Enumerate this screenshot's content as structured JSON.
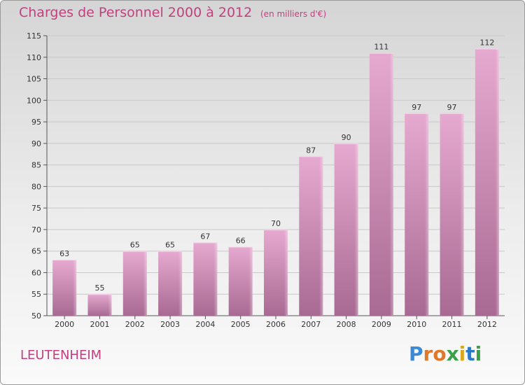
{
  "title": "Charges de Personnel 2000 à 2012",
  "subtitle": "(en milliers d'€)",
  "location": "LEUTENHEIM",
  "logo": {
    "letters": [
      "P",
      "r",
      "o",
      "x",
      "i",
      "t",
      "i"
    ],
    "colors": [
      "#3a8ad8",
      "#e0782a",
      "#e0782a",
      "#3ba04a",
      "#d8a820",
      "#2a78c8",
      "#3ba04a"
    ]
  },
  "colors": {
    "title": "#c0417e",
    "bar_top": "#e6a9d0",
    "bar_bottom": "#a86a92",
    "grid": "#c8c8c8"
  },
  "chart_data": {
    "type": "bar",
    "title": "Charges de Personnel 2000 à 2012",
    "subtitle": "(en milliers d'€)",
    "categories": [
      "2000",
      "2001",
      "2002",
      "2003",
      "2004",
      "2005",
      "2006",
      "2007",
      "2008",
      "2009",
      "2010",
      "2011",
      "2012"
    ],
    "values": [
      63,
      55,
      65,
      65,
      67,
      66,
      70,
      87,
      90,
      111,
      97,
      97,
      112
    ],
    "ylim": [
      50,
      115
    ],
    "yticks": [
      50,
      55,
      60,
      65,
      70,
      75,
      80,
      85,
      90,
      95,
      100,
      105,
      110,
      115
    ],
    "grid": true,
    "xlabel": "",
    "ylabel": ""
  }
}
